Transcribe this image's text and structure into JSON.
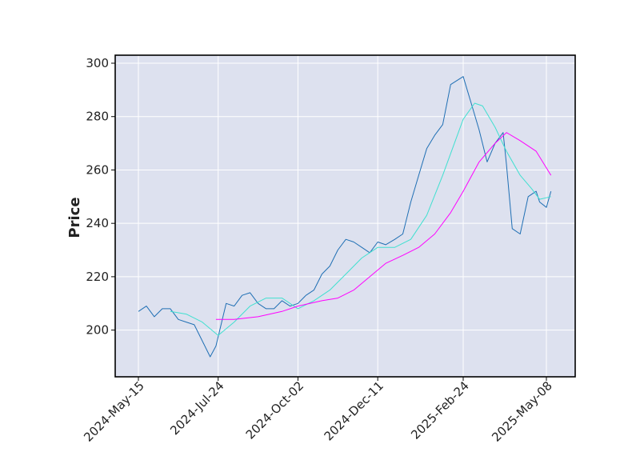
{
  "chart_data": {
    "type": "line",
    "title": "",
    "xlabel": "",
    "ylabel": "Price",
    "ylim": [
      182.5,
      303
    ],
    "y_ticks": [
      200,
      220,
      240,
      260,
      280,
      300
    ],
    "x_tick_labels": [
      {
        "label": "2024-May-15",
        "date": "2024-05-15"
      },
      {
        "label": "2024-Jul-24",
        "date": "2024-07-24"
      },
      {
        "label": "2024-Oct-02",
        "date": "2024-10-02"
      },
      {
        "label": "2024-Dec-11",
        "date": "2024-12-11"
      },
      {
        "label": "2025-Feb-24",
        "date": "2025-02-24"
      },
      {
        "label": "2025-May-08",
        "date": "2025-05-08"
      }
    ],
    "grid": true,
    "legend": "none",
    "colors": {
      "plot_background": "#dde1ef",
      "grid": "#ffffff",
      "price": "#1f6fb4",
      "ma_short": "#40e0d0",
      "ma_long": "#ff00ff"
    },
    "series": [
      {
        "key": "price",
        "x": [
          "2024-05-15",
          "2024-05-22",
          "2024-05-29",
          "2024-06-05",
          "2024-06-12",
          "2024-06-19",
          "2024-06-26",
          "2024-07-03",
          "2024-07-10",
          "2024-07-17",
          "2024-07-22",
          "2024-07-31",
          "2024-08-07",
          "2024-08-14",
          "2024-08-21",
          "2024-08-28",
          "2024-09-04",
          "2024-09-11",
          "2024-09-18",
          "2024-09-25",
          "2024-10-02",
          "2024-10-09",
          "2024-10-16",
          "2024-10-23",
          "2024-10-30",
          "2024-11-06",
          "2024-11-13",
          "2024-11-20",
          "2024-11-27",
          "2024-12-04",
          "2024-12-11",
          "2024-12-18",
          "2024-12-26",
          "2025-01-02",
          "2025-01-09",
          "2025-01-16",
          "2025-01-23",
          "2025-01-30",
          "2025-02-06",
          "2025-02-13",
          "2025-02-24",
          "2025-03-03",
          "2025-03-10",
          "2025-03-17",
          "2025-03-24",
          "2025-03-31",
          "2025-04-03",
          "2025-04-08",
          "2025-04-15",
          "2025-04-22",
          "2025-04-29",
          "2025-05-02",
          "2025-05-08",
          "2025-05-12"
        ],
        "y": [
          207,
          209,
          205,
          208,
          208,
          204,
          203,
          202,
          196,
          190,
          194,
          210,
          209,
          213,
          214,
          210,
          208,
          208,
          211,
          209,
          210,
          213,
          215,
          221,
          224,
          230,
          234,
          233,
          231,
          229,
          233,
          232,
          234,
          236,
          248,
          258,
          268,
          273,
          277,
          292,
          295,
          285,
          275,
          263,
          270,
          274,
          262,
          238,
          236,
          250,
          252,
          248,
          246,
          252
        ]
      },
      {
        "key": "ma_short",
        "x": [
          "2024-06-12",
          "2024-06-26",
          "2024-07-10",
          "2024-07-24",
          "2024-08-07",
          "2024-08-21",
          "2024-09-04",
          "2024-09-18",
          "2024-10-02",
          "2024-10-16",
          "2024-10-30",
          "2024-11-13",
          "2024-11-27",
          "2024-12-11",
          "2024-12-26",
          "2025-01-09",
          "2025-01-23",
          "2025-02-06",
          "2025-02-24",
          "2025-03-06",
          "2025-03-13",
          "2025-03-24",
          "2025-04-03",
          "2025-04-15",
          "2025-04-25",
          "2025-05-02",
          "2025-05-12"
        ],
        "y": [
          207,
          206,
          203,
          198,
          203,
          209,
          212,
          212,
          208,
          211,
          215,
          221,
          227,
          231,
          231,
          234,
          243,
          258,
          279,
          285,
          284,
          276,
          267,
          258,
          253,
          249,
          250
        ]
      },
      {
        "key": "ma_long",
        "x": [
          "2024-07-22",
          "2024-08-07",
          "2024-08-28",
          "2024-09-18",
          "2024-10-02",
          "2024-10-23",
          "2024-11-06",
          "2024-11-20",
          "2024-12-04",
          "2024-12-18",
          "2025-01-02",
          "2025-01-16",
          "2025-01-30",
          "2025-02-13",
          "2025-02-24",
          "2025-03-10",
          "2025-03-24",
          "2025-04-03",
          "2025-04-15",
          "2025-04-29",
          "2025-05-12"
        ],
        "y": [
          204,
          204,
          205,
          207,
          209,
          211,
          212,
          215,
          220,
          225,
          228,
          231,
          236,
          244,
          252,
          263,
          270,
          274,
          271,
          267,
          258
        ]
      }
    ]
  }
}
